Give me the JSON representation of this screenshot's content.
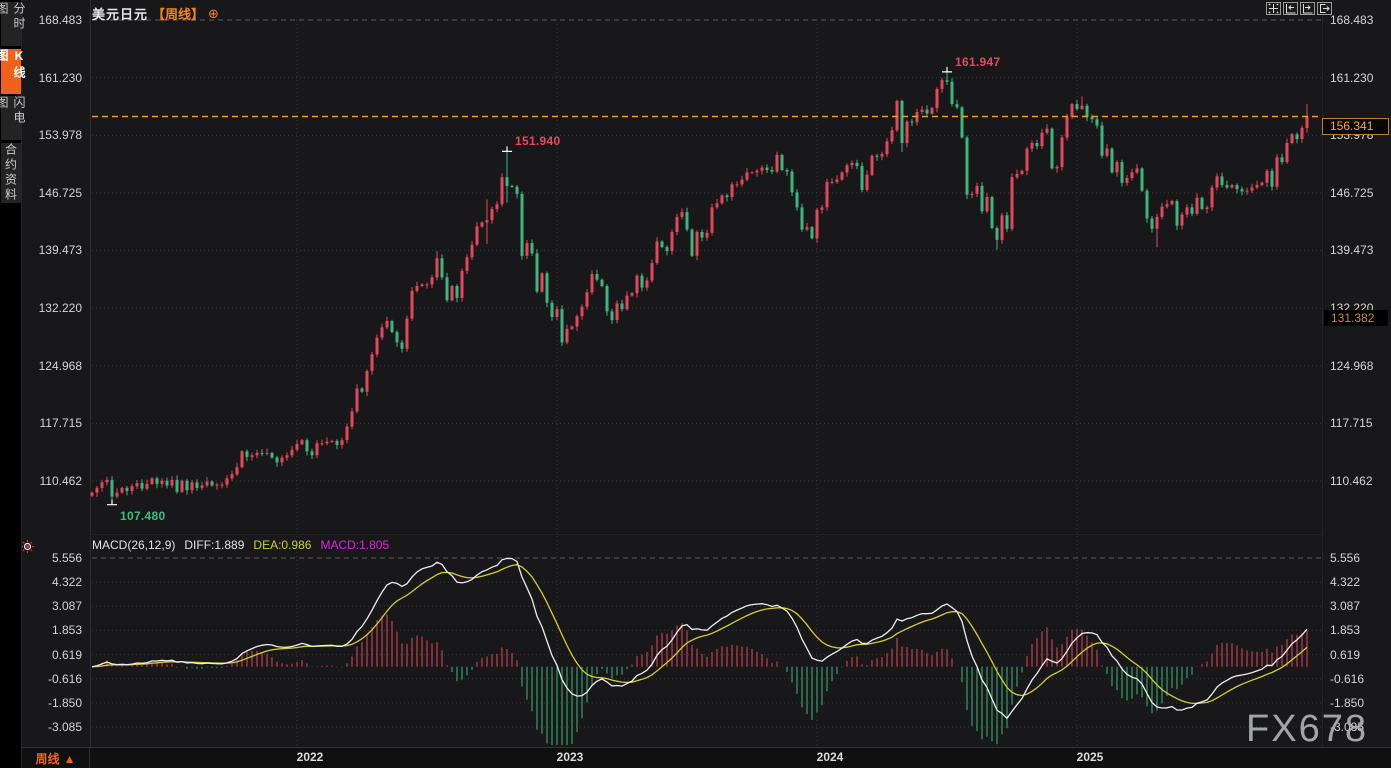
{
  "header": {
    "symbol": "美元日元",
    "period_tag": "【周线】",
    "add_icon": "⊕"
  },
  "sidebar": {
    "items": [
      {
        "label": "分时图",
        "active": false
      },
      {
        "label": "K线图",
        "active": true
      },
      {
        "label": "闪电图",
        "active": false
      },
      {
        "label": "合约资料",
        "active": false
      }
    ]
  },
  "toolbar": {
    "icons": [
      "crosshair",
      "scroll-left",
      "scroll-right",
      "exit-view"
    ]
  },
  "price_axis": {
    "labels": [
      "168.483",
      "161.230",
      "153.978",
      "146.725",
      "139.473",
      "132.220",
      "124.968",
      "117.715",
      "110.462"
    ]
  },
  "macd_axis": {
    "labels": [
      "5.556",
      "4.322",
      "3.087",
      "1.853",
      "0.619",
      "-0.616",
      "-1.850",
      "-3.085"
    ]
  },
  "indicator": {
    "name": "MACD(26,12,9)",
    "diff_label": "DIFF:1.889",
    "dea_label": "DEA:0.986",
    "macd_label": "MACD:1.805"
  },
  "markers": {
    "high_2024": {
      "text": "161.947",
      "index": 171,
      "price": 161.947
    },
    "high_2022": {
      "text": "151.940",
      "index": 83,
      "price": 151.94
    },
    "low_2021": {
      "text": "107.480",
      "index": 4,
      "price": 107.48
    },
    "last_price": {
      "text": "156.341",
      "value": 156.341
    },
    "alert_price": {
      "text": "131.382",
      "value": 131.382
    }
  },
  "footer": {
    "period_label": "周线",
    "period_arrow": "▲",
    "years": [
      "2022",
      "2023",
      "2024",
      "2025"
    ]
  },
  "watermark": "FX678",
  "colors": {
    "up": "#e2475b",
    "down": "#3bb67f",
    "accent": "#f2611b",
    "price_line": "#f59a2e",
    "diff_line": "#ededed",
    "dea_line": "#d3ce2e",
    "macd_value": "#d829d8",
    "axis_text": "#d4d4d4",
    "grid": "#3a3a3a"
  },
  "chart_data": {
    "type": "candlestick+macd",
    "title": "美元日元 周线 (USD/JPY weekly)",
    "timeframe": "weekly",
    "price_axis_ticks": [
      168.483,
      161.23,
      153.978,
      146.725,
      139.473,
      132.22,
      124.968,
      117.715,
      110.462
    ],
    "macd_axis_ticks": [
      5.556,
      4.322,
      3.087,
      1.853,
      0.619,
      -0.616,
      -1.85,
      -3.085
    ],
    "macd_params": [
      26,
      12,
      9
    ],
    "macd_last": {
      "diff": 1.889,
      "dea": 0.986,
      "macd": 1.805
    },
    "open_policy": "prev_close",
    "year_indices": {
      "2022": 41,
      "2023": 93,
      "2024": 145,
      "2025": 197
    },
    "closes": [
      109.0,
      109.6,
      110.3,
      110.6,
      108.5,
      109.0,
      109.6,
      109.2,
      109.8,
      110.2,
      109.5,
      110.1,
      110.8,
      110.1,
      110.5,
      109.9,
      110.6,
      109.1,
      110.5,
      109.3,
      110.3,
      109.6,
      109.9,
      110.4,
      109.9,
      110.0,
      110.0,
      110.8,
      111.3,
      112.2,
      114.2,
      113.5,
      113.7,
      114.0,
      113.9,
      114.0,
      113.4,
      112.8,
      113.4,
      113.7,
      114.4,
      115.1,
      115.6,
      114.2,
      113.7,
      115.2,
      115.2,
      115.4,
      115.5,
      115.0,
      115.6,
      117.3,
      119.2,
      122.1,
      121.7,
      124.3,
      126.4,
      128.5,
      129.8,
      130.6,
      129.2,
      127.9,
      127.1,
      130.9,
      134.4,
      135.0,
      135.2,
      135.2,
      136.1,
      138.5,
      136.1,
      133.2,
      135.0,
      133.5,
      136.9,
      138.6,
      140.2,
      142.5,
      143.0,
      143.3,
      144.7,
      145.3,
      148.7,
      147.6,
      147.5,
      146.6,
      138.8,
      140.4,
      139.1,
      134.3,
      136.6,
      132.9,
      131.1,
      132.1,
      127.9,
      129.6,
      129.9,
      131.2,
      132.4,
      134.2,
      136.5,
      135.8,
      135.0,
      131.8,
      130.7,
      132.8,
      132.1,
      133.8,
      134.1,
      136.3,
      134.8,
      135.7,
      137.9,
      140.6,
      139.9,
      139.4,
      141.8,
      143.7,
      144.3,
      142.1,
      138.8,
      141.8,
      141.1,
      141.7,
      144.9,
      145.4,
      146.4,
      146.2,
      147.8,
      147.8,
      148.4,
      149.3,
      149.3,
      149.5,
      149.9,
      149.6,
      149.4,
      151.5,
      149.6,
      149.4,
      146.8,
      144.9,
      142.1,
      142.4,
      141.0,
      144.6,
      144.9,
      148.1,
      148.1,
      148.4,
      149.3,
      150.2,
      150.5,
      150.1,
      147.1,
      149.0,
      151.4,
      151.3,
      151.6,
      153.2,
      154.6,
      158.3,
      153.0,
      155.7,
      155.6,
      156.9,
      157.2,
      156.7,
      157.4,
      159.8,
      160.9,
      160.7,
      157.9,
      157.5,
      153.7,
      146.5,
      146.6,
      147.6,
      144.4,
      146.2,
      142.3,
      140.8,
      143.9,
      142.2,
      148.7,
      149.1,
      149.5,
      152.3,
      153.0,
      152.6,
      154.3,
      154.8,
      149.8,
      150.0,
      153.7,
      156.3,
      157.9,
      157.3,
      157.7,
      156.3,
      156.0,
      155.2,
      151.4,
      152.3,
      149.3,
      150.6,
      148.0,
      148.6,
      149.3,
      149.8,
      147.0,
      143.5,
      142.2,
      143.7,
      145.0,
      145.3,
      145.7,
      142.6,
      144.0,
      144.9,
      144.1,
      146.1,
      144.7,
      144.9,
      147.4,
      148.8,
      147.7,
      147.4,
      147.7,
      147.2,
      146.9,
      147.0,
      147.4,
      147.7,
      148.0,
      149.5,
      147.5,
      151.2,
      150.6,
      153.0,
      154.1,
      153.5,
      154.9,
      156.341
    ],
    "wick_overrides": {
      "4": [
        null,
        107.48
      ],
      "69": [
        139.4,
        null
      ],
      "79": [
        145.9,
        140.3
      ],
      "83": [
        151.94,
        145.5
      ],
      "94": [
        null,
        127.46
      ],
      "137": [
        151.91,
        null
      ],
      "161": [
        158.44,
        null
      ],
      "162": [
        null,
        151.86
      ],
      "171": [
        161.947,
        null
      ],
      "181": [
        null,
        139.58
      ],
      "196": [
        158.08,
        null
      ],
      "198": [
        158.87,
        null
      ],
      "213": [
        null,
        139.9
      ],
      "243": [
        157.9,
        154.3
      ]
    },
    "last_close": 156.341
  }
}
